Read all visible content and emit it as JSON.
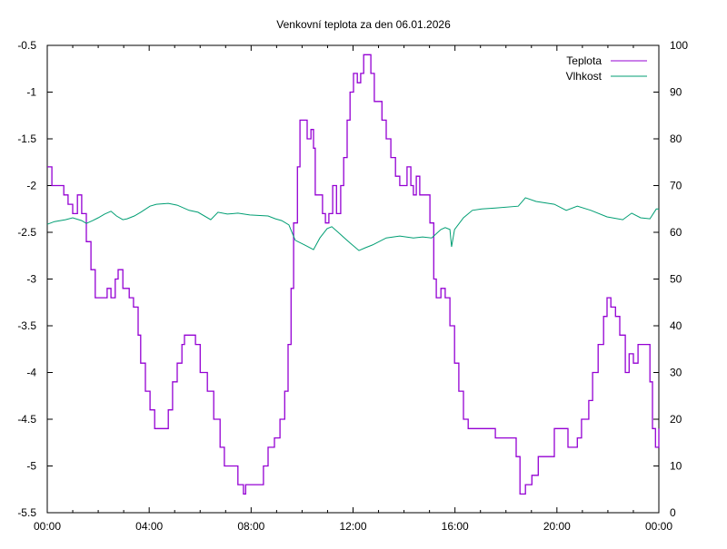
{
  "chart_data": {
    "type": "line",
    "title": "Venkovní teplota za den 06.01.2026",
    "xlabel": "",
    "ylabel": "",
    "y2label": "",
    "grid": false,
    "legend": "top-right",
    "xlim": [
      "00:00",
      "24:00"
    ],
    "ylim": [
      -5.5,
      -0.5
    ],
    "y2lim": [
      0,
      100
    ],
    "x_ticks": [
      "00:00",
      "04:00",
      "08:00",
      "12:00",
      "16:00",
      "20:00",
      "00:00"
    ],
    "y_ticks": [
      "-0.5",
      "-1",
      "-1.5",
      "-2",
      "-2.5",
      "-3",
      "-3.5",
      "-4",
      "-4.5",
      "-5",
      "-5.5"
    ],
    "y2_ticks": [
      "100",
      "90",
      "80",
      "70",
      "60",
      "50",
      "40",
      "30",
      "20",
      "10",
      "0"
    ],
    "series": [
      {
        "name": "Teplota",
        "axis": "y",
        "color": "#9400d3",
        "points": [
          [
            "00:00",
            -1.8
          ],
          [
            "00:11",
            -2.0
          ],
          [
            "00:39",
            -2.1
          ],
          [
            "00:49",
            -2.2
          ],
          [
            "01:00",
            -2.3
          ],
          [
            "01:11",
            -2.1
          ],
          [
            "01:21",
            -2.3
          ],
          [
            "01:32",
            -2.6
          ],
          [
            "01:43",
            -2.9
          ],
          [
            "01:53",
            -3.2
          ],
          [
            "02:15",
            -3.2
          ],
          [
            "02:21",
            -3.1
          ],
          [
            "02:30",
            -3.2
          ],
          [
            "02:40",
            -3.0
          ],
          [
            "02:47",
            -2.9
          ],
          [
            "02:58",
            -3.1
          ],
          [
            "03:13",
            -3.2
          ],
          [
            "03:23",
            -3.3
          ],
          [
            "03:34",
            -3.6
          ],
          [
            "03:40",
            -3.9
          ],
          [
            "03:51",
            -4.2
          ],
          [
            "04:02",
            -4.4
          ],
          [
            "04:13",
            -4.6
          ],
          [
            "04:34",
            -4.6
          ],
          [
            "04:45",
            -4.4
          ],
          [
            "04:55",
            -4.1
          ],
          [
            "05:06",
            -3.9
          ],
          [
            "05:17",
            -3.7
          ],
          [
            "05:23",
            -3.6
          ],
          [
            "05:49",
            -3.7
          ],
          [
            "06:00",
            -4.0
          ],
          [
            "06:17",
            -4.2
          ],
          [
            "06:32",
            -4.5
          ],
          [
            "06:47",
            -4.8
          ],
          [
            "06:57",
            -5.0
          ],
          [
            "07:21",
            -5.0
          ],
          [
            "07:29",
            -5.2
          ],
          [
            "07:42",
            -5.3
          ],
          [
            "07:47",
            -5.2
          ],
          [
            "08:19",
            -5.2
          ],
          [
            "08:29",
            -5.0
          ],
          [
            "08:40",
            -4.8
          ],
          [
            "08:55",
            -4.7
          ],
          [
            "09:08",
            -4.5
          ],
          [
            "09:19",
            -4.2
          ],
          [
            "09:27",
            -3.7
          ],
          [
            "09:34",
            -3.1
          ],
          [
            "09:40",
            -2.4
          ],
          [
            "09:49",
            -1.8
          ],
          [
            "09:55",
            -1.3
          ],
          [
            "10:06",
            -1.3
          ],
          [
            "10:12",
            -1.5
          ],
          [
            "10:21",
            -1.4
          ],
          [
            "10:27",
            -1.6
          ],
          [
            "10:31",
            -2.1
          ],
          [
            "10:42",
            -2.1
          ],
          [
            "10:48",
            -2.3
          ],
          [
            "10:55",
            -2.4
          ],
          [
            "11:03",
            -2.3
          ],
          [
            "11:12",
            -2.0
          ],
          [
            "11:21",
            -2.3
          ],
          [
            "11:31",
            -2.0
          ],
          [
            "11:38",
            -1.7
          ],
          [
            "11:46",
            -1.3
          ],
          [
            "11:53",
            -1.0
          ],
          [
            "12:01",
            -0.8
          ],
          [
            "12:10",
            -0.9
          ],
          [
            "12:18",
            -0.8
          ],
          [
            "12:25",
            -0.6
          ],
          [
            "12:35",
            -0.6
          ],
          [
            "12:42",
            -0.8
          ],
          [
            "12:50",
            -1.1
          ],
          [
            "12:59",
            -1.1
          ],
          [
            "13:08",
            -1.3
          ],
          [
            "13:18",
            -1.5
          ],
          [
            "13:29",
            -1.7
          ],
          [
            "13:40",
            -1.9
          ],
          [
            "13:50",
            -2.0
          ],
          [
            "14:01",
            -2.0
          ],
          [
            "14:07",
            -1.8
          ],
          [
            "14:16",
            -2.0
          ],
          [
            "14:22",
            -2.1
          ],
          [
            "14:29",
            -1.9
          ],
          [
            "14:37",
            -2.1
          ],
          [
            "14:55",
            -2.1
          ],
          [
            "15:01",
            -2.4
          ],
          [
            "15:10",
            -3.0
          ],
          [
            "15:16",
            -3.2
          ],
          [
            "15:27",
            -3.1
          ],
          [
            "15:37",
            -3.2
          ],
          [
            "15:48",
            -3.5
          ],
          [
            "15:59",
            -3.9
          ],
          [
            "16:09",
            -4.2
          ],
          [
            "16:20",
            -4.5
          ],
          [
            "16:31",
            -4.6
          ],
          [
            "17:24",
            -4.6
          ],
          [
            "17:35",
            -4.7
          ],
          [
            "18:18",
            -4.7
          ],
          [
            "18:24",
            -4.9
          ],
          [
            "18:33",
            -5.3
          ],
          [
            "18:46",
            -5.2
          ],
          [
            "19:01",
            -5.1
          ],
          [
            "19:16",
            -4.9
          ],
          [
            "19:43",
            -4.9
          ],
          [
            "19:54",
            -4.6
          ],
          [
            "20:16",
            -4.6
          ],
          [
            "20:26",
            -4.8
          ],
          [
            "20:48",
            -4.7
          ],
          [
            "20:58",
            -4.5
          ],
          [
            "21:15",
            -4.3
          ],
          [
            "21:24",
            -4.0
          ],
          [
            "21:37",
            -3.7
          ],
          [
            "21:50",
            -3.4
          ],
          [
            "21:58",
            -3.2
          ],
          [
            "22:07",
            -3.3
          ],
          [
            "22:18",
            -3.4
          ],
          [
            "22:28",
            -3.6
          ],
          [
            "22:41",
            -4.0
          ],
          [
            "22:50",
            -3.8
          ],
          [
            "23:00",
            -3.9
          ],
          [
            "23:11",
            -3.7
          ],
          [
            "23:24",
            -3.7
          ],
          [
            "23:39",
            -4.1
          ],
          [
            "23:45",
            -4.6
          ],
          [
            "23:52",
            -4.8
          ],
          [
            "24:00",
            -4.6
          ]
        ]
      },
      {
        "name": "Vlhkost",
        "axis": "y2",
        "color": "#009e73",
        "points": [
          [
            "00:00",
            61.7
          ],
          [
            "00:17",
            62.3
          ],
          [
            "00:43",
            62.7
          ],
          [
            "01:00",
            63.1
          ],
          [
            "01:21",
            62.5
          ],
          [
            "01:32",
            61.9
          ],
          [
            "01:47",
            62.5
          ],
          [
            "02:00",
            63.1
          ],
          [
            "02:15",
            63.9
          ],
          [
            "02:30",
            64.5
          ],
          [
            "02:43",
            63.5
          ],
          [
            "02:58",
            62.7
          ],
          [
            "03:08",
            62.9
          ],
          [
            "03:25",
            63.5
          ],
          [
            "03:40",
            64.3
          ],
          [
            "04:02",
            65.6
          ],
          [
            "04:17",
            66.0
          ],
          [
            "04:45",
            66.2
          ],
          [
            "05:06",
            65.8
          ],
          [
            "05:34",
            64.7
          ],
          [
            "05:55",
            64.3
          ],
          [
            "06:25",
            62.7
          ],
          [
            "06:42",
            64.3
          ],
          [
            "07:04",
            63.9
          ],
          [
            "07:29",
            64.1
          ],
          [
            "07:57",
            63.7
          ],
          [
            "08:40",
            63.5
          ],
          [
            "08:57",
            62.9
          ],
          [
            "09:12",
            62.5
          ],
          [
            "09:29",
            61.6
          ],
          [
            "09:44",
            58.3
          ],
          [
            "10:06",
            57.3
          ],
          [
            "10:27",
            56.3
          ],
          [
            "10:42",
            58.8
          ],
          [
            "10:59",
            60.8
          ],
          [
            "11:10",
            61.2
          ],
          [
            "11:25",
            60.0
          ],
          [
            "11:53",
            57.7
          ],
          [
            "12:14",
            56.1
          ],
          [
            "12:29",
            56.7
          ],
          [
            "12:46",
            57.3
          ],
          [
            "13:18",
            58.8
          ],
          [
            "13:50",
            59.2
          ],
          [
            "14:22",
            58.8
          ],
          [
            "14:44",
            59.0
          ],
          [
            "15:05",
            58.8
          ],
          [
            "15:27",
            60.6
          ],
          [
            "15:37",
            61.0
          ],
          [
            "15:48",
            60.6
          ],
          [
            "15:52",
            56.9
          ],
          [
            "15:59",
            60.6
          ],
          [
            "16:20",
            63.1
          ],
          [
            "16:41",
            64.7
          ],
          [
            "17:03",
            65.0
          ],
          [
            "17:35",
            65.2
          ],
          [
            "18:29",
            65.6
          ],
          [
            "18:46",
            67.4
          ],
          [
            "19:11",
            66.6
          ],
          [
            "19:54",
            66.0
          ],
          [
            "20:22",
            64.7
          ],
          [
            "20:48",
            65.6
          ],
          [
            "21:20",
            64.7
          ],
          [
            "21:58",
            63.3
          ],
          [
            "22:35",
            62.7
          ],
          [
            "22:56",
            64.1
          ],
          [
            "23:17",
            63.1
          ],
          [
            "23:39",
            62.9
          ],
          [
            "23:54",
            65.0
          ],
          [
            "24:00",
            65.0
          ]
        ]
      }
    ]
  }
}
